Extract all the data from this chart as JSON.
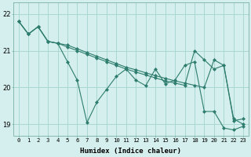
{
  "xlabel": "Humidex (Indice chaleur)",
  "bg_color": "#d4efed",
  "grid_color": "#a8d8d4",
  "line_color": "#2e7d6e",
  "xlim": [
    -0.5,
    23.5
  ],
  "ylim": [
    18.7,
    22.3
  ],
  "yticks": [
    19,
    20,
    21,
    22
  ],
  "series": [
    [
      21.8,
      21.45,
      21.65,
      21.25,
      21.2,
      21.15,
      21.05,
      20.95,
      20.85,
      20.75,
      20.65,
      20.55,
      20.48,
      20.4,
      20.32,
      20.25,
      20.18,
      20.12,
      20.06,
      20.0,
      20.75,
      20.6,
      19.1,
      19.15
    ],
    [
      21.8,
      21.45,
      21.65,
      21.25,
      21.2,
      21.1,
      21.0,
      20.9,
      20.8,
      20.7,
      20.6,
      20.5,
      20.42,
      20.34,
      20.26,
      20.18,
      20.12,
      20.06,
      21.0,
      20.75,
      20.5,
      20.6,
      19.15,
      19.0
    ],
    [
      21.8,
      21.45,
      21.65,
      21.25,
      21.2,
      20.7,
      20.2,
      19.05,
      19.6,
      19.95,
      20.3,
      20.5,
      20.2,
      20.05,
      20.5,
      20.1,
      20.2,
      20.6,
      20.7,
      19.35,
      19.35,
      18.9,
      18.85,
      18.95
    ]
  ]
}
